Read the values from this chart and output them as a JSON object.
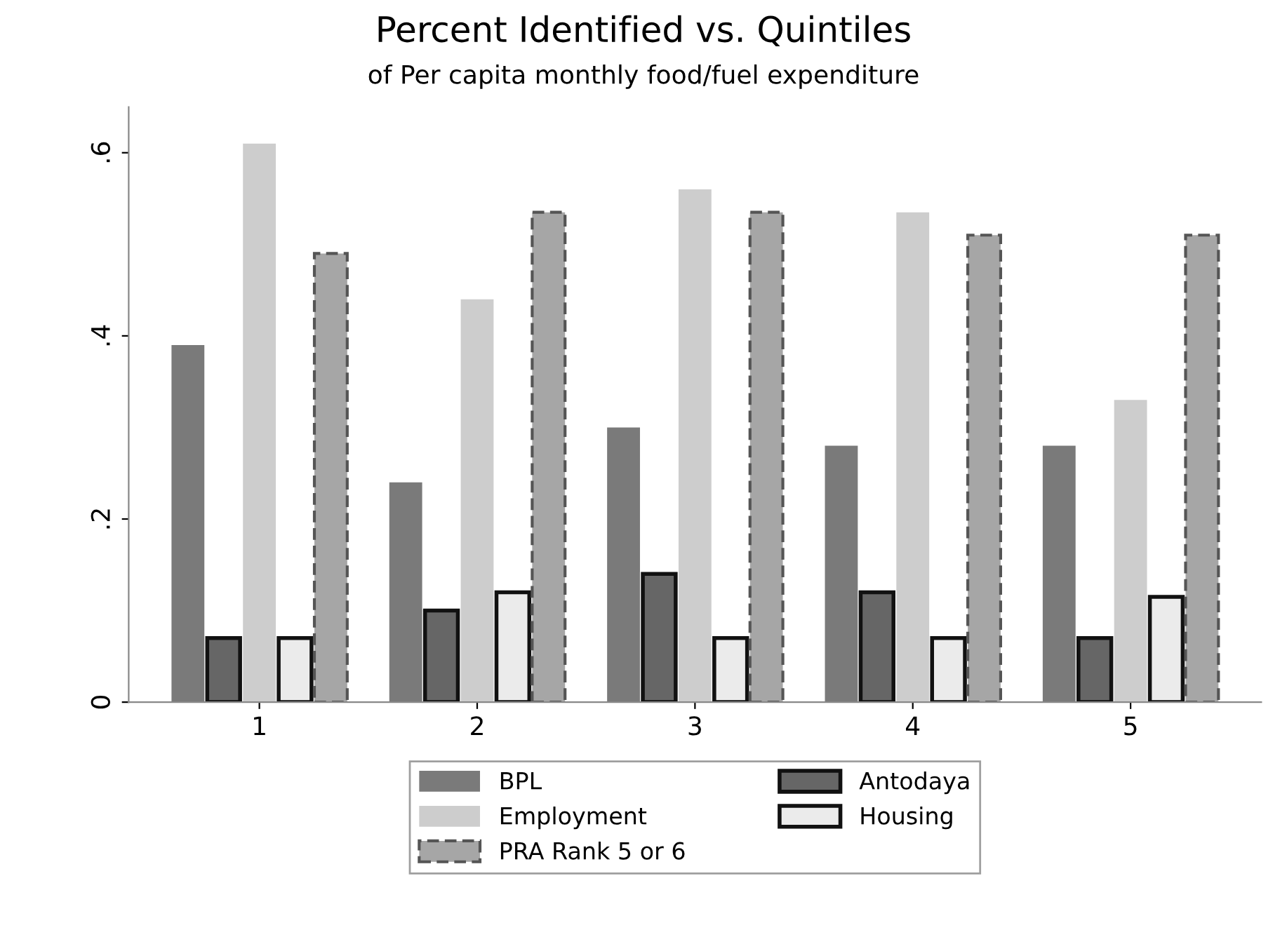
{
  "chart_data": {
    "type": "bar",
    "title": "Percent Identified vs. Quintiles",
    "subtitle": "of Per capita monthly food/fuel expenditure",
    "categories": [
      "1",
      "2",
      "3",
      "4",
      "5"
    ],
    "series": [
      {
        "name": "BPL",
        "color": "#7a7a7a",
        "values": [
          0.39,
          0.24,
          0.3,
          0.28,
          0.28
        ]
      },
      {
        "name": "Antodaya",
        "color": "#666666",
        "line_style": "solid",
        "values": [
          0.07,
          0.1,
          0.14,
          0.12,
          0.07
        ]
      },
      {
        "name": "Employment",
        "color": "#cdcdcd",
        "values": [
          0.61,
          0.44,
          0.56,
          0.535,
          0.33
        ]
      },
      {
        "name": "Housing",
        "color": "#ebebeb",
        "line_style": "solid",
        "values": [
          0.07,
          0.12,
          0.07,
          0.07,
          0.115
        ]
      },
      {
        "name": "PRA Rank 5 or 6",
        "color": "#a6a6a6",
        "line_style": "dashed",
        "values": [
          0.49,
          0.535,
          0.535,
          0.51,
          0.51
        ]
      }
    ],
    "ylim": [
      0,
      0.65
    ],
    "yticks": [
      {
        "value": 0,
        "label": "0"
      },
      {
        "value": 0.2,
        "label": ".2"
      },
      {
        "value": 0.4,
        "label": ".4"
      },
      {
        "value": 0.6,
        "label": ".6"
      }
    ],
    "grid": false,
    "legend": "bottom"
  }
}
